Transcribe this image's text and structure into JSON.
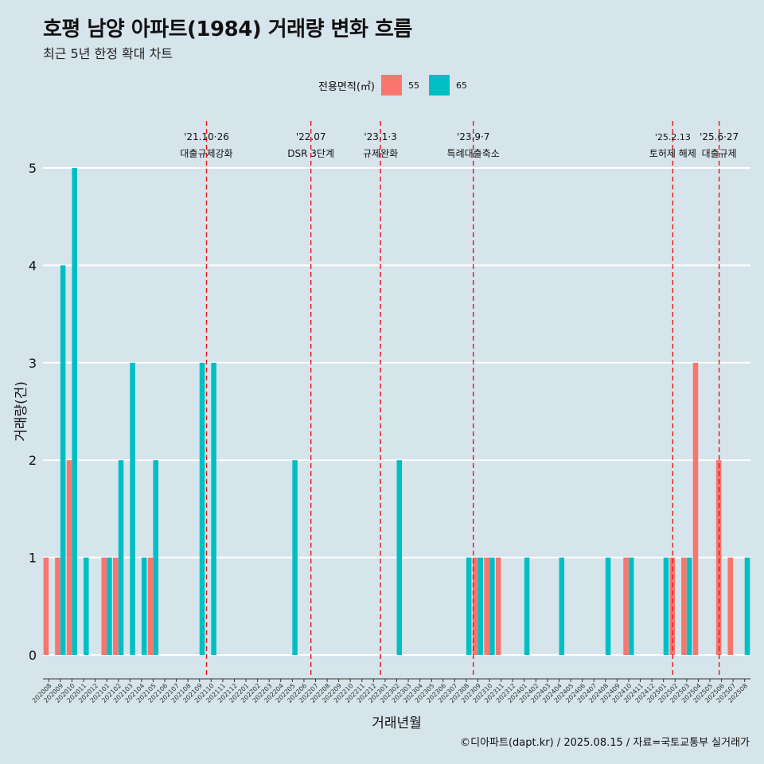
{
  "chart_data": {
    "type": "bar",
    "title": "호평 남양 아파트(1984) 거래량 변화 흐름",
    "subtitle": "최근 5년 한정 확대 차트",
    "xlabel": "거래년월",
    "ylabel": "거래량(건)",
    "ylim": [
      0,
      5
    ],
    "y_ticks": [
      "0",
      "1",
      "2",
      "3",
      "4",
      "5"
    ],
    "grid": true,
    "legend": {
      "title": "전용면적(㎡)",
      "placement": "top",
      "entries": [
        {
          "name": "55",
          "color": "#F8766D"
        },
        {
          "name": "65",
          "color": "#00BFC4"
        }
      ]
    },
    "categories": [
      "202008",
      "202009",
      "202010",
      "202011",
      "202012",
      "202101",
      "202102",
      "202103",
      "202104",
      "202105",
      "202106",
      "202107",
      "202108",
      "202109",
      "202110",
      "202111",
      "202112",
      "202201",
      "202202",
      "202203",
      "202204",
      "202205",
      "202206",
      "202207",
      "202208",
      "202209",
      "202210",
      "202211",
      "202212",
      "202301",
      "202302",
      "202303",
      "202304",
      "202305",
      "202306",
      "202307",
      "202308",
      "202309",
      "202310",
      "202311",
      "202312",
      "202401",
      "202402",
      "202403",
      "202404",
      "202405",
      "202406",
      "202407",
      "202408",
      "202409",
      "202410",
      "202411",
      "202412",
      "202501",
      "202502",
      "202503",
      "202504",
      "202505",
      "202506",
      "202507",
      "202508"
    ],
    "series": [
      {
        "name": "55",
        "color": "#F8766D",
        "values": [
          1,
          1,
          2,
          0,
          0,
          1,
          1,
          0,
          0,
          1,
          0,
          0,
          0,
          0,
          0,
          0,
          0,
          0,
          0,
          0,
          0,
          0,
          0,
          0,
          0,
          0,
          0,
          0,
          0,
          0,
          0,
          0,
          0,
          0,
          0,
          0,
          0,
          1,
          1,
          1,
          0,
          0,
          0,
          0,
          0,
          0,
          0,
          0,
          0,
          0,
          1,
          0,
          0,
          0,
          1,
          1,
          3,
          0,
          2,
          1,
          0
        ]
      },
      {
        "name": "65",
        "color": "#00BFC4",
        "values": [
          0,
          4,
          5,
          1,
          0,
          1,
          2,
          3,
          1,
          2,
          0,
          0,
          0,
          3,
          3,
          0,
          0,
          0,
          0,
          0,
          0,
          2,
          0,
          0,
          0,
          0,
          0,
          0,
          0,
          0,
          2,
          0,
          0,
          0,
          0,
          0,
          1,
          1,
          1,
          0,
          0,
          1,
          0,
          0,
          1,
          0,
          0,
          0,
          1,
          0,
          1,
          0,
          0,
          1,
          0,
          1,
          0,
          0,
          0,
          0,
          1
        ]
      }
    ],
    "annotations": [
      {
        "date": "'21.10·26",
        "label": "대출규제강화"
      },
      {
        "date": "'22.07",
        "label": "DSR 3단계"
      },
      {
        "date": "'23.1·3",
        "label": "규제완화"
      },
      {
        "date": "'23.9·7",
        "label": "특례대출축소"
      },
      {
        "date": "'25.2.13",
        "label": "토허제 해제"
      },
      {
        "date": "'25.6·27",
        "label": "대출규제"
      }
    ]
  },
  "caption": "©디아파트(dapt.kr) / 2025.08.15 / 자료=국토교통부 실거래가",
  "colors": {
    "background": "#d6e4eb",
    "ref_line": "#e8141b"
  }
}
